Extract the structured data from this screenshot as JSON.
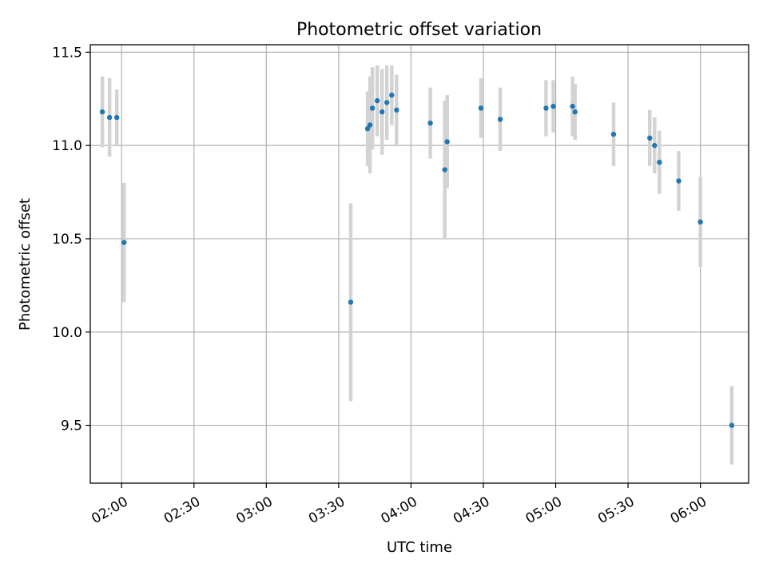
{
  "chart_data": {
    "type": "scatter",
    "title": "Photometric offset variation",
    "xlabel": "UTC time",
    "ylabel": "Photometric offset",
    "x_ticks": [
      "02:00",
      "02:30",
      "03:00",
      "03:30",
      "04:00",
      "04:30",
      "05:00",
      "05:30",
      "06:00"
    ],
    "y_ticks": [
      9.5,
      10.0,
      10.5,
      11.0,
      11.5
    ],
    "xlim": [
      "01:47",
      "06:20"
    ],
    "ylim": [
      9.19,
      11.54
    ],
    "grid": true,
    "colors": {
      "point": "#1f77b4",
      "errorbar": "#d3d3d3"
    },
    "points": [
      {
        "x": "01:52",
        "y": 11.18,
        "err": 0.19
      },
      {
        "x": "01:55",
        "y": 11.15,
        "err": 0.21
      },
      {
        "x": "01:58",
        "y": 11.15,
        "err": 0.15
      },
      {
        "x": "02:01",
        "y": 10.48,
        "err": 0.32
      },
      {
        "x": "03:35",
        "y": 10.16,
        "err": 0.53
      },
      {
        "x": "03:42",
        "y": 11.09,
        "err": 0.2
      },
      {
        "x": "03:43",
        "y": 11.11,
        "err": 0.26
      },
      {
        "x": "03:44",
        "y": 11.2,
        "err": 0.22
      },
      {
        "x": "03:46",
        "y": 11.24,
        "err": 0.19
      },
      {
        "x": "03:48",
        "y": 11.18,
        "err": 0.23
      },
      {
        "x": "03:50",
        "y": 11.23,
        "err": 0.2
      },
      {
        "x": "03:52",
        "y": 11.27,
        "err": 0.16
      },
      {
        "x": "03:54",
        "y": 11.19,
        "err": 0.19
      },
      {
        "x": "04:08",
        "y": 11.12,
        "err": 0.19
      },
      {
        "x": "04:14",
        "y": 10.87,
        "err": 0.37
      },
      {
        "x": "04:15",
        "y": 11.02,
        "err": 0.25
      },
      {
        "x": "04:29",
        "y": 11.2,
        "err": 0.16
      },
      {
        "x": "04:37",
        "y": 11.14,
        "err": 0.17
      },
      {
        "x": "04:56",
        "y": 11.2,
        "err": 0.15
      },
      {
        "x": "04:59",
        "y": 11.21,
        "err": 0.14
      },
      {
        "x": "05:07",
        "y": 11.21,
        "err": 0.16
      },
      {
        "x": "05:08",
        "y": 11.18,
        "err": 0.15
      },
      {
        "x": "05:24",
        "y": 11.06,
        "err": 0.17
      },
      {
        "x": "05:39",
        "y": 11.04,
        "err": 0.15
      },
      {
        "x": "05:41",
        "y": 11.0,
        "err": 0.15
      },
      {
        "x": "05:43",
        "y": 10.91,
        "err": 0.17
      },
      {
        "x": "05:51",
        "y": 10.81,
        "err": 0.16
      },
      {
        "x": "06:00",
        "y": 10.59,
        "err": 0.24
      },
      {
        "x": "06:13",
        "y": 9.5,
        "err": 0.21
      }
    ]
  }
}
